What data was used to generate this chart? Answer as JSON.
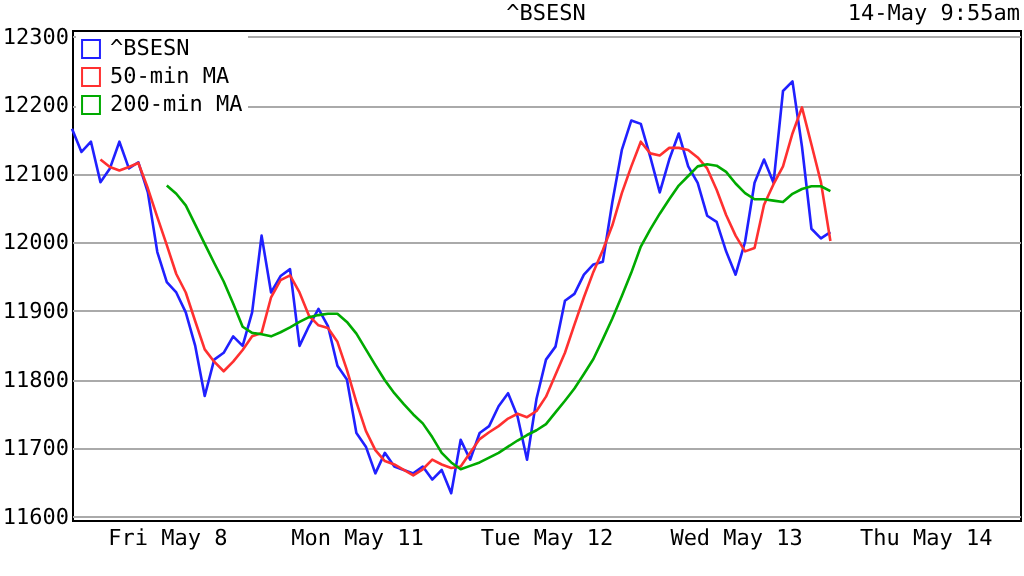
{
  "chart_data": {
    "type": "line",
    "title": "^BSESN",
    "annotations": [
      "14-May 9:55am"
    ],
    "categories": [
      null,
      null,
      null,
      null,
      null,
      null,
      null,
      null,
      null,
      null,
      "Fri May 8",
      null,
      null,
      null,
      null,
      null,
      null,
      null,
      null,
      null,
      null,
      null,
      null,
      null,
      null,
      null,
      null,
      null,
      null,
      null,
      "Mon May 11",
      null,
      null,
      null,
      null,
      null,
      null,
      null,
      null,
      null,
      null,
      null,
      null,
      null,
      null,
      null,
      null,
      null,
      null,
      null,
      "Tue May 12",
      null,
      null,
      null,
      null,
      null,
      null,
      null,
      null,
      null,
      null,
      null,
      null,
      null,
      null,
      null,
      null,
      null,
      null,
      null,
      "Wed May 13",
      null,
      null,
      null,
      null,
      null,
      null,
      null,
      null,
      null,
      null,
      null,
      null,
      null,
      null,
      null,
      null,
      null,
      null,
      null,
      "Thu May 14",
      null,
      null,
      null,
      null,
      null,
      null,
      null,
      null,
      null,
      null
    ],
    "ylim": [
      11595,
      12310
    ],
    "yticks": [
      11600,
      11700,
      11800,
      11900,
      12000,
      12100,
      12200,
      12300
    ],
    "grid": "y",
    "legend": "top left",
    "marker": "none",
    "line_style": "solid",
    "series": [
      {
        "name": "^BSESN",
        "color": "#2020ff",
        "values": [
          12166,
          12132,
          12147,
          12088,
          12108,
          12147,
          12108,
          12117,
          12073,
          11986,
          11942,
          11927,
          11898,
          11849,
          11776,
          11829,
          11839,
          11863,
          11849,
          11898,
          12010,
          11927,
          11951,
          11961,
          11849,
          11878,
          11903,
          11878,
          11820,
          11800,
          11722,
          11702,
          11663,
          11693,
          11673,
          11668,
          11663,
          11673,
          11654,
          11668,
          11634,
          11712,
          11683,
          11722,
          11732,
          11761,
          11780,
          11746,
          11683,
          11772,
          11829,
          11848,
          11915,
          11925,
          11953,
          11968,
          11972,
          12059,
          12135,
          12178,
          12173,
          12125,
          12073,
          12121,
          12159,
          12111,
          12087,
          12039,
          12030,
          11987,
          11953,
          12001,
          12087,
          12121,
          12087,
          12221,
          12235,
          12140,
          12020,
          12006,
          12015,
          null,
          null,
          null,
          null,
          null,
          null,
          null,
          null,
          null,
          null,
          null,
          null,
          null,
          null,
          null,
          null,
          null,
          null,
          null,
          null
        ]
      },
      {
        "name": "50-min MA",
        "color": "#ff3030",
        "values": [
          null,
          null,
          null,
          12121,
          12110,
          12105,
          12110,
          12116,
          12079,
          12037,
          11996,
          11954,
          11927,
          11885,
          11844,
          11826,
          11812,
          11826,
          11843,
          11863,
          11868,
          11920,
          11945,
          11952,
          11927,
          11893,
          11879,
          11875,
          11855,
          11814,
          11767,
          11725,
          11697,
          11681,
          11676,
          11668,
          11660,
          11669,
          11683,
          11676,
          11671,
          11673,
          11693,
          11713,
          11723,
          11732,
          11743,
          11750,
          11745,
          11754,
          11775,
          11807,
          11839,
          11880,
          11920,
          11957,
          11989,
          12025,
          12072,
          12111,
          12147,
          12130,
          12127,
          12138,
          12138,
          12135,
          12124,
          12108,
          12077,
          12040,
          12010,
          11987,
          11992,
          12055,
          12085,
          12111,
          12159,
          12197,
          12143,
          12088,
          12002,
          null,
          null,
          null,
          null,
          null,
          null,
          null,
          null,
          null,
          null,
          null,
          null,
          null,
          null,
          null,
          null,
          null,
          null,
          null,
          null
        ]
      },
      {
        "name": "200-min MA",
        "color": "#00aa00",
        "values": [
          null,
          null,
          null,
          null,
          null,
          null,
          null,
          null,
          null,
          null,
          12083,
          12071,
          12054,
          12026,
          11998,
          11970,
          11943,
          11911,
          11877,
          11868,
          11866,
          11863,
          11869,
          11876,
          11884,
          11891,
          11894,
          11896,
          11896,
          11884,
          11867,
          11844,
          11821,
          11799,
          11780,
          11764,
          11749,
          11736,
          11716,
          11693,
          11679,
          11669,
          11674,
          11679,
          11686,
          11693,
          11702,
          11711,
          11719,
          11726,
          11735,
          11752,
          11769,
          11787,
          11808,
          11830,
          11859,
          11889,
          11922,
          11956,
          11994,
          12019,
          12042,
          12063,
          12083,
          12097,
          12111,
          12114,
          12112,
          12103,
          12086,
          12072,
          12063,
          12063,
          12061,
          12059,
          12071,
          12078,
          12082,
          12082,
          12075,
          null,
          null,
          null,
          null,
          null,
          null,
          null,
          null,
          null,
          null,
          null,
          null,
          null,
          null,
          null,
          null,
          null,
          null,
          null,
          null
        ]
      }
    ]
  }
}
